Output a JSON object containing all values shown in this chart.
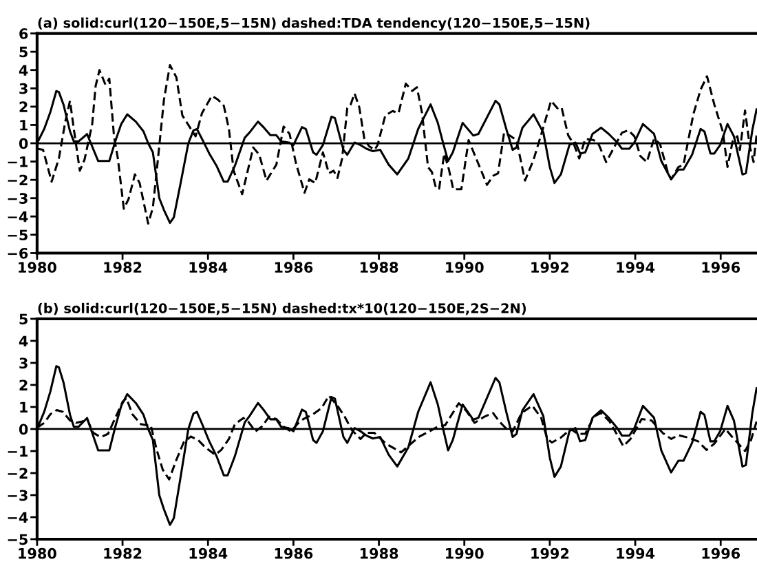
{
  "chart_data": [
    {
      "type": "line",
      "title": "(a) solid:curl(120−150E,5−15N) dashed:TDA tendency(120−150E,5−15N)",
      "xlim": [
        1980,
        1996.85
      ],
      "xticks": [
        1980,
        1982,
        1984,
        1986,
        1988,
        1990,
        1992,
        1994,
        1996
      ],
      "ylim": [
        -6,
        6
      ],
      "yticks": [
        {
          "value": -6,
          "label": "−6"
        },
        {
          "value": -5,
          "label": "−5"
        },
        {
          "value": -4,
          "label": "−4"
        },
        {
          "value": -3,
          "label": "−3"
        },
        {
          "value": -2,
          "label": "−2"
        },
        {
          "value": -1,
          "label": "−1"
        },
        0,
        1,
        2,
        3,
        4,
        5,
        6
      ],
      "grid": false,
      "ref_lines": [
        {
          "axis": "y",
          "value": 0,
          "color": "#000000",
          "line_style": "solid"
        }
      ],
      "series": [
        {
          "color": "#000000",
          "line_style": "solid",
          "x": [
            1980.0,
            1980.17,
            1980.31,
            1980.45,
            1980.51,
            1980.62,
            1980.77,
            1980.86,
            1980.97,
            1981.17,
            1981.43,
            1981.69,
            1981.83,
            1981.97,
            1982.11,
            1982.31,
            1982.49,
            1982.6,
            1982.71,
            1982.86,
            1982.97,
            1983.11,
            1983.2,
            1983.37,
            1983.54,
            1983.66,
            1983.74,
            1983.89,
            1984.03,
            1984.2,
            1984.37,
            1984.46,
            1984.63,
            1984.86,
            1984.97,
            1985.17,
            1985.31,
            1985.46,
            1985.6,
            1985.71,
            1985.89,
            1986.0,
            1986.2,
            1986.29,
            1986.46,
            1986.54,
            1986.69,
            1986.89,
            1986.97,
            1987.17,
            1987.26,
            1987.43,
            1987.57,
            1987.71,
            1987.86,
            1988.03,
            1988.23,
            1988.43,
            1988.69,
            1988.92,
            1989.21,
            1989.38,
            1989.5,
            1989.62,
            1989.73,
            1989.96,
            1990.21,
            1990.33,
            1990.73,
            1990.82,
            1990.99,
            1991.13,
            1991.22,
            1991.36,
            1991.62,
            1991.85,
            1992.0,
            1992.11,
            1992.26,
            1992.46,
            1992.6,
            1992.71,
            1992.83,
            1993.0,
            1993.2,
            1993.38,
            1993.58,
            1993.69,
            1993.86,
            1993.98,
            1994.18,
            1994.44,
            1994.61,
            1994.84,
            1995.01,
            1995.13,
            1995.33,
            1995.53,
            1995.62,
            1995.76,
            1995.85,
            1995.99,
            1996.16,
            1996.31,
            1996.51,
            1996.59,
            1996.74,
            1996.84
          ],
          "values": [
            0,
            0.8,
            1.7,
            2.85,
            2.8,
            2.1,
            0.65,
            0.1,
            0.1,
            0.5,
            -0.97,
            -0.97,
            0.1,
            1.05,
            1.58,
            1.18,
            0.65,
            0,
            -0.5,
            -3.0,
            -3.65,
            -4.35,
            -4.05,
            -2.05,
            0,
            0.7,
            0.78,
            0.1,
            -0.56,
            -1.23,
            -2.1,
            -2.1,
            -1.23,
            0.3,
            0.58,
            1.18,
            0.85,
            0.44,
            0.44,
            0.1,
            0.04,
            -0.1,
            0.88,
            0.78,
            -0.5,
            -0.63,
            -0.1,
            1.45,
            1.38,
            -0.36,
            -0.63,
            0.04,
            -0.1,
            -0.3,
            -0.43,
            -0.36,
            -1.17,
            -1.7,
            -0.83,
            0.78,
            2.12,
            1.11,
            0.04,
            -0.97,
            -0.5,
            1.11,
            0.42,
            0.51,
            2.32,
            2.12,
            0.71,
            -0.36,
            -0.23,
            0.85,
            1.58,
            0.58,
            -1.3,
            -2.17,
            -1.7,
            -0.09,
            0.04,
            -0.56,
            -0.5,
            0.51,
            0.85,
            0.51,
            0.04,
            -0.3,
            -0.3,
            0.04,
            1.05,
            0.51,
            -0.97,
            -1.97,
            -1.44,
            -1.44,
            -0.63,
            0.78,
            0.64,
            -0.56,
            -0.56,
            -0.09,
            1.05,
            0.38,
            -1.7,
            -1.64,
            0.71,
            1.85
          ]
        },
        {
          "color": "#000000",
          "line_style": "dashed",
          "x": [
            1980.0,
            1980.14,
            1980.34,
            1980.51,
            1980.66,
            1980.77,
            1980.86,
            1981.0,
            1981.11,
            1981.29,
            1981.37,
            1981.46,
            1981.6,
            1981.69,
            1981.8,
            1981.89,
            1982.03,
            1982.14,
            1982.29,
            1982.4,
            1982.6,
            1982.71,
            1982.83,
            1982.97,
            1983.11,
            1983.26,
            1983.4,
            1983.6,
            1983.71,
            1983.86,
            1984.09,
            1984.23,
            1984.37,
            1984.49,
            1984.6,
            1984.8,
            1985.06,
            1985.2,
            1985.37,
            1985.6,
            1985.77,
            1985.91,
            1986.06,
            1986.26,
            1986.37,
            1986.51,
            1986.69,
            1986.83,
            1986.94,
            1987.03,
            1987.14,
            1987.26,
            1987.34,
            1987.43,
            1987.54,
            1987.66,
            1987.77,
            1987.9,
            1987.97,
            1988.15,
            1988.32,
            1988.46,
            1988.63,
            1988.78,
            1988.89,
            1989.01,
            1989.15,
            1989.24,
            1989.34,
            1989.41,
            1989.53,
            1989.64,
            1989.74,
            1989.93,
            1990.1,
            1990.36,
            1990.53,
            1990.68,
            1990.79,
            1990.93,
            1991.05,
            1991.22,
            1991.42,
            1991.62,
            1991.82,
            1992.03,
            1992.2,
            1992.28,
            1992.43,
            1992.57,
            1992.69,
            1992.83,
            1993.03,
            1993.15,
            1993.32,
            1993.52,
            1993.69,
            1993.84,
            1993.98,
            1994.12,
            1994.27,
            1994.44,
            1994.58,
            1994.76,
            1994.84,
            1995.01,
            1995.13,
            1995.36,
            1995.53,
            1995.68,
            1995.85,
            1996.05,
            1996.16,
            1996.28,
            1996.39,
            1996.45,
            1996.57,
            1996.68,
            1996.77,
            1996.84
          ],
          "values": [
            -0.3,
            -0.36,
            -2.1,
            -0.83,
            1.18,
            2.32,
            0.78,
            -1.5,
            -0.9,
            1.05,
            3.13,
            4.0,
            3.2,
            3.53,
            0.38,
            -0.83,
            -3.58,
            -3.05,
            -1.7,
            -2.17,
            -4.39,
            -3.52,
            -0.83,
            2.39,
            4.27,
            3.6,
            1.52,
            0.78,
            0.38,
            1.65,
            2.59,
            2.39,
            2.05,
            0.78,
            -1.5,
            -2.78,
            -0.23,
            -0.63,
            -2.04,
            -1.17,
            0.91,
            0.51,
            -1.1,
            -2.71,
            -1.97,
            -2.17,
            -0.5,
            -1.64,
            -1.5,
            -1.9,
            -0.83,
            1.92,
            2.12,
            2.72,
            1.98,
            0.24,
            -0.16,
            -0.36,
            -0.09,
            1.52,
            1.76,
            1.65,
            3.26,
            2.86,
            3.06,
            1.65,
            -1.3,
            -1.57,
            -2.48,
            -2.48,
            -0.56,
            -1.44,
            -2.51,
            -2.51,
            0.17,
            -1.3,
            -2.27,
            -1.77,
            -1.64,
            0.58,
            0.44,
            0.17,
            -2.04,
            -0.9,
            0.64,
            2.32,
            1.85,
            1.92,
            0.44,
            -0.09,
            -0.83,
            0.24,
            0.17,
            -0.09,
            -1.03,
            -0.16,
            0.58,
            0.71,
            0.38,
            -0.7,
            -1.03,
            0.24,
            -0.03,
            -1.57,
            -1.97,
            -1.3,
            -1.17,
            1.58,
            2.93,
            3.66,
            2.12,
            0.64,
            -1.3,
            0.11,
            0.38,
            -0.36,
            1.79,
            -0.16,
            -1.03,
            0.44
          ]
        }
      ]
    },
    {
      "type": "line",
      "title": "(b) solid:curl(120−150E,5−15N) dashed:tx*10(120−150E,2S−2N)",
      "xlim": [
        1980,
        1996.85
      ],
      "xticks": [
        1980,
        1982,
        1984,
        1986,
        1988,
        1990,
        1992,
        1994,
        1996
      ],
      "ylim": [
        -5,
        5
      ],
      "yticks": [
        {
          "value": -5,
          "label": "−5"
        },
        {
          "value": -4,
          "label": "−4"
        },
        {
          "value": -3,
          "label": "−3"
        },
        {
          "value": -2,
          "label": "−2"
        },
        {
          "value": -1,
          "label": "−1"
        },
        0,
        1,
        2,
        3,
        4,
        5
      ],
      "grid": false,
      "ref_lines": [
        {
          "axis": "y",
          "value": 0,
          "color": "#000000",
          "line_style": "solid"
        }
      ],
      "series": [
        {
          "color": "#000000",
          "line_style": "solid",
          "x": [
            1980.0,
            1980.17,
            1980.31,
            1980.45,
            1980.51,
            1980.62,
            1980.77,
            1980.86,
            1980.97,
            1981.17,
            1981.43,
            1981.69,
            1981.83,
            1981.97,
            1982.11,
            1982.31,
            1982.49,
            1982.6,
            1982.71,
            1982.86,
            1982.97,
            1983.11,
            1983.2,
            1983.37,
            1983.54,
            1983.66,
            1983.74,
            1983.89,
            1984.03,
            1984.2,
            1984.37,
            1984.46,
            1984.63,
            1984.86,
            1984.97,
            1985.17,
            1985.31,
            1985.46,
            1985.6,
            1985.71,
            1985.89,
            1986.0,
            1986.2,
            1986.29,
            1986.46,
            1986.54,
            1986.69,
            1986.89,
            1986.97,
            1987.17,
            1987.26,
            1987.43,
            1987.57,
            1987.71,
            1987.86,
            1988.03,
            1988.23,
            1988.43,
            1988.69,
            1988.92,
            1989.21,
            1989.38,
            1989.5,
            1989.62,
            1989.73,
            1989.96,
            1990.21,
            1990.33,
            1990.73,
            1990.82,
            1990.99,
            1991.13,
            1991.22,
            1991.36,
            1991.62,
            1991.85,
            1992.0,
            1992.11,
            1992.26,
            1992.46,
            1992.6,
            1992.71,
            1992.83,
            1993.0,
            1993.2,
            1993.38,
            1993.58,
            1993.69,
            1993.86,
            1993.98,
            1994.18,
            1994.44,
            1994.61,
            1994.84,
            1995.01,
            1995.13,
            1995.33,
            1995.53,
            1995.62,
            1995.76,
            1995.85,
            1995.99,
            1996.16,
            1996.31,
            1996.51,
            1996.59,
            1996.74,
            1996.84
          ],
          "values": [
            0,
            0.8,
            1.7,
            2.85,
            2.8,
            2.1,
            0.65,
            0.1,
            0.1,
            0.5,
            -0.97,
            -0.97,
            0.1,
            1.05,
            1.58,
            1.18,
            0.65,
            0,
            -0.5,
            -3.0,
            -3.65,
            -4.35,
            -4.05,
            -2.05,
            0,
            0.7,
            0.78,
            0.1,
            -0.56,
            -1.23,
            -2.1,
            -2.1,
            -1.23,
            0.3,
            0.58,
            1.18,
            0.85,
            0.44,
            0.44,
            0.1,
            0.04,
            -0.1,
            0.88,
            0.78,
            -0.5,
            -0.63,
            -0.1,
            1.45,
            1.38,
            -0.36,
            -0.63,
            0.04,
            -0.1,
            -0.3,
            -0.43,
            -0.36,
            -1.17,
            -1.7,
            -0.83,
            0.78,
            2.12,
            1.11,
            0.04,
            -0.97,
            -0.5,
            1.11,
            0.42,
            0.51,
            2.32,
            2.12,
            0.71,
            -0.36,
            -0.23,
            0.85,
            1.58,
            0.58,
            -1.3,
            -2.17,
            -1.7,
            -0.09,
            0.04,
            -0.56,
            -0.5,
            0.51,
            0.85,
            0.51,
            0.04,
            -0.3,
            -0.3,
            0.04,
            1.05,
            0.51,
            -0.97,
            -1.97,
            -1.44,
            -1.44,
            -0.63,
            0.78,
            0.64,
            -0.56,
            -0.56,
            -0.09,
            1.05,
            0.38,
            -1.7,
            -1.64,
            0.71,
            1.85
          ]
        },
        {
          "color": "#000000",
          "line_style": "dashed",
          "x": [
            1980.0,
            1980.17,
            1980.31,
            1980.46,
            1980.6,
            1980.77,
            1980.91,
            1981.06,
            1981.17,
            1981.31,
            1981.49,
            1981.66,
            1981.83,
            1982.0,
            1982.09,
            1982.23,
            1982.43,
            1982.57,
            1982.66,
            1982.8,
            1982.94,
            1983.09,
            1983.26,
            1983.43,
            1983.6,
            1983.77,
            1983.94,
            1984.17,
            1984.31,
            1984.49,
            1984.63,
            1984.83,
            1984.94,
            1985.11,
            1985.26,
            1985.43,
            1985.6,
            1985.77,
            1985.94,
            1986.09,
            1986.23,
            1986.46,
            1986.66,
            1986.83,
            1987.03,
            1987.2,
            1987.37,
            1987.57,
            1987.71,
            1987.89,
            1988.17,
            1988.52,
            1988.75,
            1988.95,
            1989.18,
            1989.38,
            1989.55,
            1989.87,
            1990.04,
            1990.24,
            1990.47,
            1990.67,
            1990.82,
            1990.96,
            1991.13,
            1991.34,
            1991.59,
            1991.8,
            1991.94,
            1992.05,
            1992.26,
            1992.49,
            1992.66,
            1992.83,
            1993.03,
            1993.2,
            1993.4,
            1993.58,
            1993.72,
            1993.89,
            1994.15,
            1994.38,
            1994.64,
            1994.84,
            1995.01,
            1995.24,
            1995.47,
            1995.67,
            1995.85,
            1996.11,
            1996.31,
            1996.57,
            1996.71,
            1996.84
          ],
          "values": [
            0.06,
            0.28,
            0.67,
            0.86,
            0.78,
            0.39,
            0.28,
            0.34,
            0.45,
            -0.17,
            -0.37,
            -0.22,
            0.5,
            1.23,
            1.4,
            0.67,
            0.22,
            0.17,
            0.17,
            -0.95,
            -1.84,
            -2.29,
            -1.4,
            -0.61,
            -0.34,
            -0.5,
            -0.84,
            -1.17,
            -0.95,
            -0.45,
            0.22,
            0.5,
            0.34,
            -0.11,
            0.11,
            0.56,
            0.45,
            0.11,
            -0.11,
            0.22,
            0.45,
            0.67,
            0.95,
            1.51,
            1.06,
            0.56,
            -0.06,
            -0.45,
            -0.17,
            -0.17,
            -0.67,
            -1.06,
            -0.67,
            -0.34,
            -0.11,
            0.11,
            0.17,
            1.17,
            0.84,
            0.28,
            0.56,
            0.73,
            0.34,
            0.06,
            -0.11,
            0.73,
            1.06,
            0.5,
            -0.45,
            -0.61,
            -0.39,
            0,
            -0.22,
            -0.22,
            0.56,
            0.73,
            0.34,
            -0.28,
            -0.78,
            -0.45,
            0.45,
            0.39,
            -0.17,
            -0.45,
            -0.28,
            -0.39,
            -0.56,
            -0.95,
            -0.67,
            0,
            -0.45,
            -1.0,
            -0.5,
            0.34
          ]
        }
      ]
    }
  ]
}
